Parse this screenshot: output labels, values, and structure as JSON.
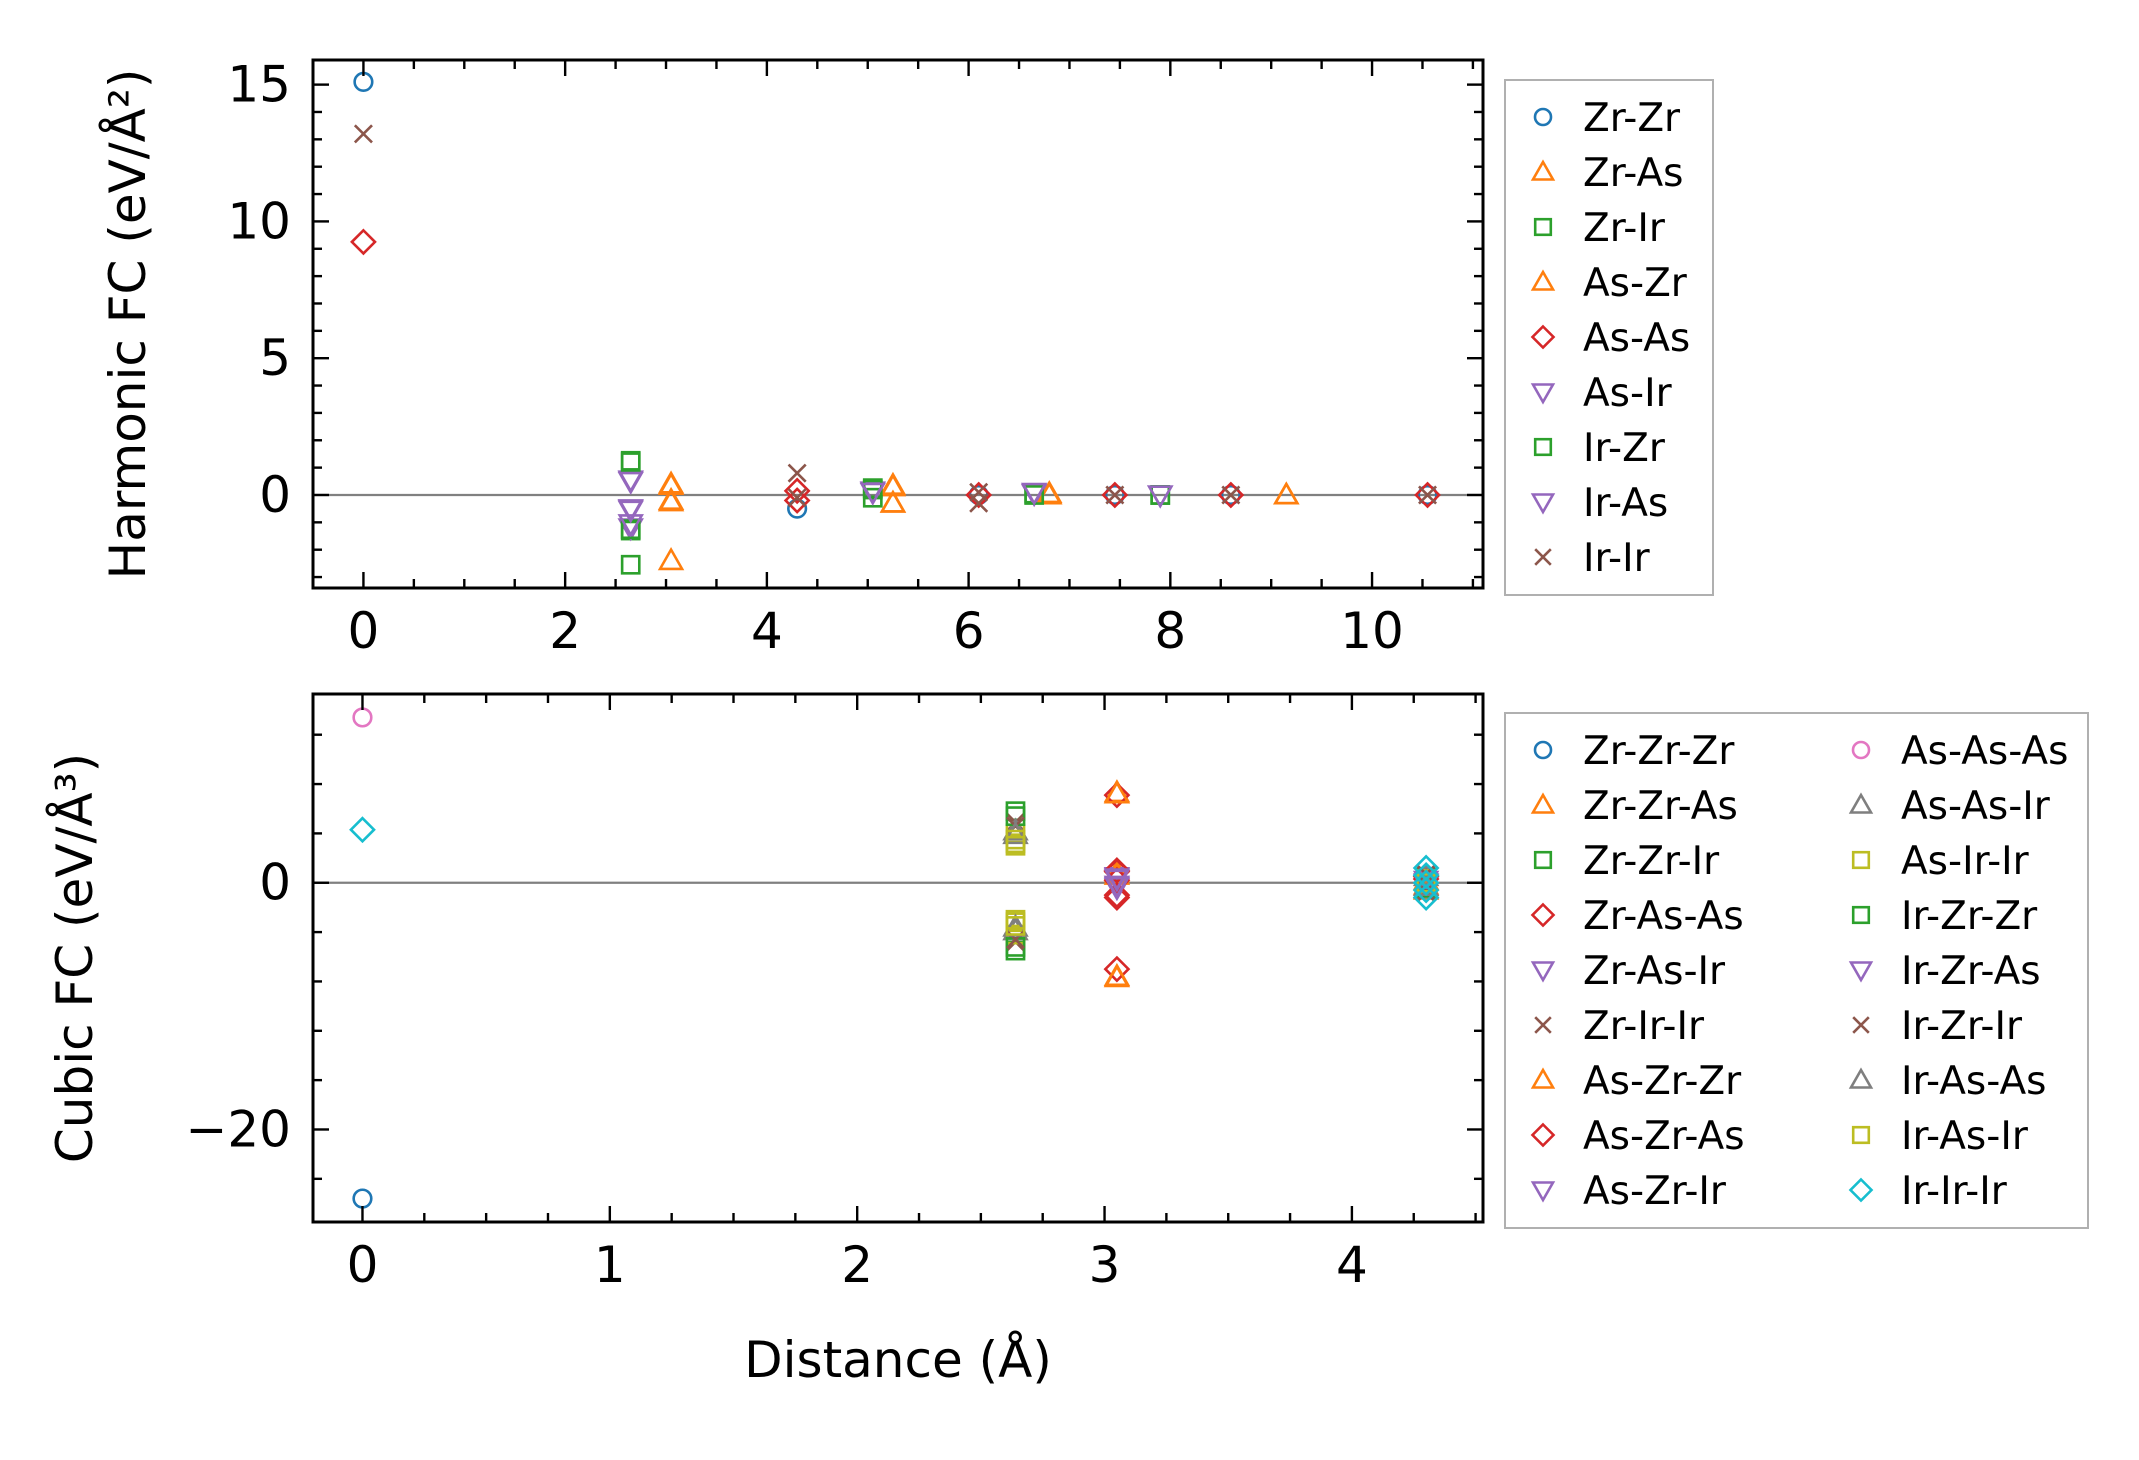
{
  "colors": {
    "Zr-Zr": "#1f77b4",
    "Zr-As": "#ff7f0e",
    "Zr-Ir": "#2ca02c",
    "As-Zr": "#ff7f0e",
    "As-As": "#d62728",
    "As-Ir": "#9467bd",
    "Ir-Zr": "#2ca02c",
    "Ir-As": "#9467bd",
    "Ir-Ir": "#8c564b",
    "Zr-Zr-Zr": "#1f77b4",
    "Zr-Zr-As": "#ff7f0e",
    "Zr-Zr-Ir": "#2ca02c",
    "Zr-As-As": "#d62728",
    "Zr-As-Ir": "#9467bd",
    "Zr-Ir-Ir": "#8c564b",
    "As-Zr-Zr": "#ff7f0e",
    "As-Zr-As": "#d62728",
    "As-Zr-Ir": "#9467bd",
    "As-As-As": "#e377c2",
    "As-As-Ir": "#7f7f7f",
    "As-Ir-Ir": "#bcbd22",
    "Ir-Zr-Zr": "#2ca02c",
    "Ir-Zr-As": "#9467bd",
    "Ir-Zr-Ir": "#8c564b",
    "Ir-As-As": "#7f7f7f",
    "Ir-As-Ir": "#bcbd22",
    "Ir-Ir-Ir": "#17becf"
  },
  "chart_data": [
    {
      "type": "scatter",
      "ylabel": "Harmonic FC (eV/Å²)",
      "xlabel": "",
      "xlim": [
        -0.5,
        11.1
      ],
      "ylim": [
        -3.4,
        15.9
      ],
      "xticks": [
        0,
        2,
        4,
        6,
        8,
        10
      ],
      "yticks": [
        0,
        5,
        10,
        15
      ],
      "zero_line": true,
      "legend_position": "outside-right",
      "legend_columns": 1,
      "series": [
        {
          "name": "Zr-Zr",
          "marker": "circle",
          "points": [
            [
              0,
              15.1
            ],
            [
              4.3,
              -0.5
            ],
            [
              6.1,
              0.0
            ],
            [
              7.45,
              0.0
            ],
            [
              8.6,
              0.0
            ],
            [
              10.55,
              0.0
            ]
          ]
        },
        {
          "name": "Zr-As",
          "marker": "triangle-up",
          "points": [
            [
              3.05,
              0.4
            ],
            [
              3.05,
              -0.2
            ],
            [
              3.05,
              -2.4
            ],
            [
              5.25,
              0.3
            ],
            [
              5.25,
              -0.3
            ],
            [
              6.8,
              0.0
            ],
            [
              9.15,
              0.0
            ]
          ]
        },
        {
          "name": "Zr-Ir",
          "marker": "square",
          "points": [
            [
              2.65,
              1.25
            ],
            [
              2.65,
              -1.3
            ],
            [
              2.65,
              -2.55
            ],
            [
              5.05,
              0.25
            ],
            [
              5.05,
              -0.1
            ],
            [
              6.65,
              0.05
            ],
            [
              7.9,
              0.0
            ]
          ]
        },
        {
          "name": "As-Zr",
          "marker": "triangle-up",
          "points": [
            [
              3.05,
              0.35
            ],
            [
              3.05,
              -0.25
            ],
            [
              5.25,
              0.35
            ],
            [
              5.25,
              -0.3
            ],
            [
              6.8,
              0.05
            ],
            [
              9.15,
              0.0
            ]
          ]
        },
        {
          "name": "As-As",
          "marker": "diamond",
          "points": [
            [
              0,
              9.25
            ],
            [
              4.3,
              0.15
            ],
            [
              4.3,
              -0.2
            ],
            [
              6.1,
              0.0
            ],
            [
              7.45,
              0.0
            ],
            [
              8.6,
              0.0
            ],
            [
              10.55,
              0.0
            ]
          ]
        },
        {
          "name": "As-Ir",
          "marker": "triangle-down",
          "points": [
            [
              2.65,
              0.55
            ],
            [
              2.65,
              -0.5
            ],
            [
              2.65,
              -1.2
            ],
            [
              5.05,
              0.15
            ],
            [
              6.65,
              0.05
            ],
            [
              7.9,
              0.0
            ]
          ]
        },
        {
          "name": "Ir-Zr",
          "marker": "square",
          "points": [
            [
              2.65,
              1.2
            ],
            [
              2.65,
              -1.25
            ],
            [
              5.05,
              0.2
            ],
            [
              6.65,
              0.0
            ],
            [
              7.9,
              0.0
            ]
          ]
        },
        {
          "name": "Ir-As",
          "marker": "triangle-down",
          "points": [
            [
              2.65,
              0.5
            ],
            [
              2.65,
              -0.55
            ],
            [
              2.65,
              -1.05
            ],
            [
              5.05,
              0.1
            ],
            [
              6.65,
              0.1
            ],
            [
              7.9,
              0.0
            ]
          ]
        },
        {
          "name": "Ir-Ir",
          "marker": "x",
          "points": [
            [
              0,
              13.2
            ],
            [
              4.3,
              0.8
            ],
            [
              4.3,
              -0.1
            ],
            [
              6.1,
              0.1
            ],
            [
              6.1,
              -0.3
            ],
            [
              7.45,
              0.0
            ],
            [
              8.6,
              0.0
            ],
            [
              10.55,
              0.0
            ]
          ]
        }
      ]
    },
    {
      "type": "scatter",
      "ylabel": "Cubic FC (eV/Å³)",
      "xlabel": "Distance (Å)",
      "xlim": [
        -0.2,
        4.53
      ],
      "ylim": [
        -27.5,
        15.3
      ],
      "xticks": [
        0,
        1,
        2,
        3,
        4
      ],
      "yticks": [
        -20,
        0
      ],
      "zero_line": true,
      "legend_position": "outside-right",
      "legend_columns": 2,
      "series": [
        {
          "name": "Zr-Zr-Zr",
          "marker": "circle",
          "points": [
            [
              0,
              -25.6
            ],
            [
              4.3,
              0.3
            ],
            [
              4.3,
              -0.4
            ]
          ]
        },
        {
          "name": "Zr-Zr-As",
          "marker": "triangle-up",
          "points": [
            [
              3.05,
              7.3
            ],
            [
              3.05,
              -7.7
            ],
            [
              3.05,
              0.8
            ],
            [
              4.3,
              0.2
            ],
            [
              4.3,
              -0.6
            ]
          ]
        },
        {
          "name": "Zr-Zr-Ir",
          "marker": "square",
          "points": [
            [
              2.64,
              5.8
            ],
            [
              2.64,
              -5.5
            ],
            [
              4.3,
              0.4
            ],
            [
              4.3,
              -0.3
            ]
          ]
        },
        {
          "name": "Zr-As-As",
          "marker": "diamond",
          "points": [
            [
              3.05,
              7.1
            ],
            [
              3.05,
              -7.0
            ],
            [
              3.05,
              0.9
            ],
            [
              3.05,
              -1.2
            ],
            [
              4.3,
              0.5
            ]
          ]
        },
        {
          "name": "Zr-As-Ir",
          "marker": "triangle-down",
          "points": [
            [
              3.05,
              0.5
            ],
            [
              3.05,
              -0.4
            ],
            [
              4.3,
              0.0
            ]
          ]
        },
        {
          "name": "Zr-Ir-Ir",
          "marker": "x",
          "points": [
            [
              2.64,
              4.9
            ],
            [
              2.64,
              -4.8
            ],
            [
              4.3,
              0.6
            ],
            [
              4.3,
              -0.8
            ]
          ]
        },
        {
          "name": "As-Zr-Zr",
          "marker": "triangle-up",
          "points": [
            [
              3.05,
              7.2
            ],
            [
              3.05,
              -7.6
            ],
            [
              3.05,
              0.6
            ],
            [
              4.3,
              -0.2
            ]
          ]
        },
        {
          "name": "As-Zr-As",
          "marker": "diamond",
          "points": [
            [
              3.05,
              1.0
            ],
            [
              3.05,
              -1.0
            ],
            [
              3.05,
              0.2
            ],
            [
              4.3,
              0.3
            ]
          ]
        },
        {
          "name": "As-Zr-Ir",
          "marker": "triangle-down",
          "points": [
            [
              3.05,
              0.4
            ],
            [
              3.05,
              -0.2
            ],
            [
              4.3,
              -0.1
            ]
          ]
        },
        {
          "name": "As-As-As",
          "marker": "circle",
          "points": [
            [
              0,
              13.4
            ],
            [
              4.3,
              0.1
            ]
          ]
        },
        {
          "name": "As-As-Ir",
          "marker": "triangle-up",
          "points": [
            [
              2.64,
              4.2
            ],
            [
              2.64,
              -3.9
            ],
            [
              4.3,
              0.5
            ],
            [
              4.3,
              -0.5
            ]
          ]
        },
        {
          "name": "As-Ir-Ir",
          "marker": "square",
          "points": [
            [
              2.64,
              3.2
            ],
            [
              2.64,
              -3.2
            ],
            [
              2.64,
              4.0
            ],
            [
              2.64,
              -4.2
            ],
            [
              4.3,
              0.3
            ]
          ]
        },
        {
          "name": "Ir-Zr-Zr",
          "marker": "square",
          "points": [
            [
              2.64,
              5.4
            ],
            [
              2.64,
              -5.2
            ],
            [
              4.3,
              -0.4
            ]
          ]
        },
        {
          "name": "Ir-Zr-As",
          "marker": "triangle-down",
          "points": [
            [
              3.05,
              0.3
            ],
            [
              3.05,
              -0.3
            ],
            [
              4.3,
              0.2
            ]
          ]
        },
        {
          "name": "Ir-Zr-Ir",
          "marker": "x",
          "points": [
            [
              2.64,
              4.6
            ],
            [
              2.64,
              -4.6
            ],
            [
              4.3,
              0.7
            ],
            [
              4.3,
              -0.7
            ]
          ]
        },
        {
          "name": "Ir-As-As",
          "marker": "triangle-up",
          "points": [
            [
              2.64,
              3.9
            ],
            [
              2.64,
              -3.6
            ],
            [
              4.3,
              -0.3
            ]
          ]
        },
        {
          "name": "Ir-As-Ir",
          "marker": "square",
          "points": [
            [
              2.64,
              3.5
            ],
            [
              2.64,
              -3.5
            ],
            [
              2.64,
              3.0
            ],
            [
              2.64,
              -3.0
            ],
            [
              4.3,
              0.0
            ]
          ]
        },
        {
          "name": "Ir-Ir-Ir",
          "marker": "diamond",
          "points": [
            [
              0,
              4.3
            ],
            [
              4.3,
              1.2
            ],
            [
              4.3,
              0.6
            ],
            [
              4.3,
              0.0
            ],
            [
              4.3,
              -0.6
            ],
            [
              4.3,
              -1.2
            ]
          ]
        }
      ]
    }
  ]
}
